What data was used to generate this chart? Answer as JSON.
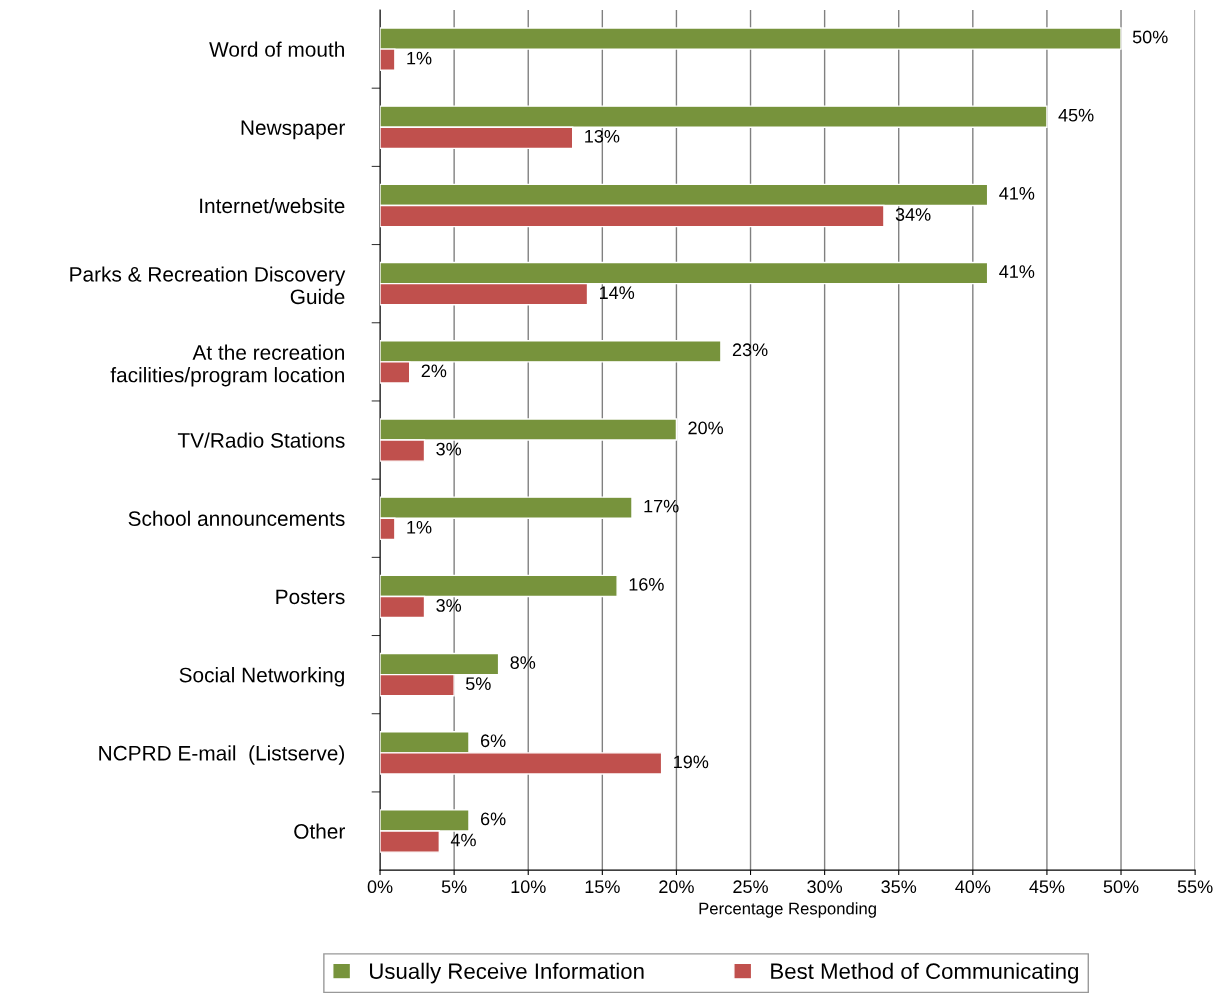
{
  "chart_data": {
    "type": "bar",
    "orientation": "horizontal",
    "categories": [
      "Word of mouth",
      "Newspaper",
      "Internet/website",
      "Parks & Recreation Discovery\nGuide",
      "At the recreation\nfacilities/program location",
      "TV/Radio Stations",
      "School announcements",
      "Posters",
      "Social Networking",
      "NCPRD E-mail  (Listserve)",
      "Other"
    ],
    "series": [
      {
        "name": "Usually Receive Information",
        "color": "#77933c",
        "values": [
          50,
          45,
          41,
          41,
          23,
          20,
          17,
          16,
          8,
          6,
          6
        ],
        "value_labels": [
          "50%",
          "45%",
          "41%",
          "41%",
          "23%",
          "20%",
          "17%",
          "16%",
          "8%",
          "6%",
          "6%"
        ]
      },
      {
        "name": "Best Method of Communicating",
        "color": "#c0504d",
        "values": [
          1,
          13,
          34,
          14,
          2,
          3,
          1,
          3,
          5,
          19,
          4
        ],
        "value_labels": [
          "1%",
          "13%",
          "34%",
          "14%",
          "2%",
          "3%",
          "1%",
          "3%",
          "5%",
          "19%",
          "4%"
        ]
      }
    ],
    "xlabel": "Percentage Responding",
    "xlim": [
      0,
      55
    ],
    "xticks": [
      {
        "value": 0,
        "label": "0%"
      },
      {
        "value": 5,
        "label": "5%"
      },
      {
        "value": 10,
        "label": "10%"
      },
      {
        "value": 15,
        "label": "15%"
      },
      {
        "value": 20,
        "label": "20%"
      },
      {
        "value": 25,
        "label": "25%"
      },
      {
        "value": 30,
        "label": "30%"
      },
      {
        "value": 35,
        "label": "35%"
      },
      {
        "value": 40,
        "label": "40%"
      },
      {
        "value": 45,
        "label": "45%"
      },
      {
        "value": 50,
        "label": "50%"
      },
      {
        "value": 55,
        "label": "55%"
      }
    ],
    "grid": "x",
    "legend": "bottom"
  }
}
